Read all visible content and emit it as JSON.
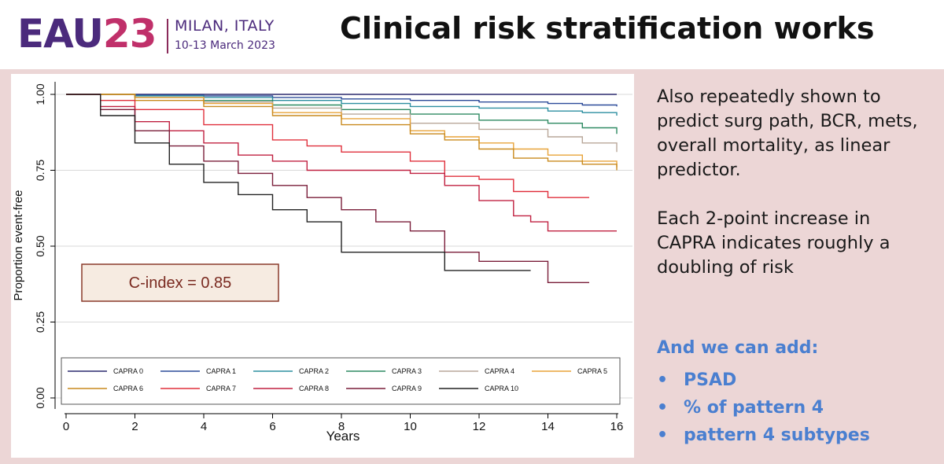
{
  "header": {
    "logo": {
      "eau": "EAU",
      "year": "23",
      "city": "MILAN, ITALY",
      "dates": "10-13 March 2023"
    },
    "title": "Clinical risk stratification works"
  },
  "side_text": {
    "paragraph1": "Also repeatedly shown to predict surg path, BCR, mets, overall mortality, as linear predictor.",
    "paragraph2": "Each 2-point increase in CAPRA indicates roughly a doubling of risk"
  },
  "additions": {
    "title": "And we can add:",
    "items": [
      "PSAD",
      "% of pattern 4",
      "pattern 4 subtypes"
    ]
  },
  "colors": {
    "header_bg": "#ffffff",
    "content_bg": "#ecd6d6",
    "accent_blue": "#4a7fd0",
    "logo_purple": "#4b2a7c",
    "logo_magenta": "#c0306a"
  },
  "chart_data": {
    "type": "line",
    "subtype": "kaplan-meier step curves",
    "xlabel": "Years",
    "ylabel": "Proportion event-free",
    "xlim": [
      0,
      16
    ],
    "ylim": [
      0,
      1
    ],
    "xticks": [
      0,
      2,
      4,
      6,
      8,
      10,
      12,
      14,
      16
    ],
    "yticks": [
      "0.00",
      "0.25",
      "0.50",
      "0.75",
      "1.00"
    ],
    "yticks_values": [
      0,
      0.25,
      0.5,
      0.75,
      1
    ],
    "grid": true,
    "legend_position": "bottom",
    "annotation": "C-index = 0.85",
    "series": [
      {
        "name": "CAPRA 0",
        "color": "#2b2a6e",
        "x": [
          0,
          2,
          6,
          10,
          14,
          16
        ],
        "y": [
          1.0,
          1.0,
          1.0,
          1.0,
          1.0,
          1.0
        ]
      },
      {
        "name": "CAPRA 1",
        "color": "#2c4b99",
        "x": [
          0,
          2,
          4,
          6,
          8,
          10,
          12,
          14,
          15,
          16
        ],
        "y": [
          1.0,
          0.998,
          0.995,
          0.99,
          0.985,
          0.98,
          0.975,
          0.97,
          0.965,
          0.96
        ]
      },
      {
        "name": "CAPRA 2",
        "color": "#2d8fa0",
        "x": [
          0,
          2,
          4,
          6,
          8,
          10,
          12,
          14,
          15,
          16
        ],
        "y": [
          1.0,
          0.995,
          0.99,
          0.98,
          0.97,
          0.96,
          0.955,
          0.945,
          0.94,
          0.93
        ]
      },
      {
        "name": "CAPRA 3",
        "color": "#2e8a62",
        "x": [
          0,
          2,
          4,
          6,
          8,
          10,
          12,
          14,
          15,
          16
        ],
        "y": [
          1.0,
          0.99,
          0.98,
          0.965,
          0.95,
          0.935,
          0.915,
          0.905,
          0.89,
          0.87
        ]
      },
      {
        "name": "CAPRA 4",
        "color": "#b9a79a",
        "x": [
          0,
          2,
          4,
          6,
          8,
          10,
          12,
          14,
          15,
          16
        ],
        "y": [
          1.0,
          0.99,
          0.975,
          0.955,
          0.935,
          0.905,
          0.885,
          0.86,
          0.84,
          0.81
        ]
      },
      {
        "name": "CAPRA 5",
        "color": "#e8a43a",
        "x": [
          0,
          2,
          4,
          6,
          8,
          10,
          11,
          12,
          13,
          14,
          15,
          16
        ],
        "y": [
          1.0,
          0.99,
          0.97,
          0.94,
          0.92,
          0.88,
          0.86,
          0.84,
          0.82,
          0.8,
          0.78,
          0.76
        ]
      },
      {
        "name": "CAPRA 6",
        "color": "#c98a1e",
        "x": [
          0,
          2,
          4,
          6,
          8,
          10,
          11,
          12,
          13,
          14,
          15,
          16
        ],
        "y": [
          1.0,
          0.98,
          0.96,
          0.93,
          0.9,
          0.87,
          0.85,
          0.82,
          0.79,
          0.78,
          0.77,
          0.75
        ]
      },
      {
        "name": "CAPRA 7",
        "color": "#e0303c",
        "x": [
          0,
          1,
          2,
          4,
          6,
          7,
          8,
          10,
          11,
          12,
          13,
          14,
          15.2
        ],
        "y": [
          1.0,
          0.98,
          0.95,
          0.9,
          0.85,
          0.83,
          0.81,
          0.78,
          0.73,
          0.72,
          0.68,
          0.66,
          0.66
        ]
      },
      {
        "name": "CAPRA 8",
        "color": "#c02040",
        "x": [
          0,
          1,
          2,
          3,
          4,
          5,
          6,
          7,
          8,
          10,
          11,
          12,
          13,
          13.5,
          14,
          16
        ],
        "y": [
          1.0,
          0.96,
          0.91,
          0.88,
          0.84,
          0.8,
          0.78,
          0.75,
          0.75,
          0.74,
          0.7,
          0.65,
          0.6,
          0.58,
          0.55,
          0.55
        ]
      },
      {
        "name": "CAPRA 9",
        "color": "#7a1e3a",
        "x": [
          0,
          1,
          2,
          3,
          4,
          5,
          6,
          7,
          8,
          9,
          10,
          11,
          12,
          13,
          14,
          15.2
        ],
        "y": [
          1.0,
          0.95,
          0.88,
          0.83,
          0.78,
          0.74,
          0.7,
          0.66,
          0.62,
          0.58,
          0.55,
          0.48,
          0.45,
          0.45,
          0.38,
          0.38
        ]
      },
      {
        "name": "CAPRA 10",
        "color": "#222222",
        "x": [
          0,
          1,
          2,
          3,
          4,
          5,
          6,
          7,
          8,
          9,
          10,
          11,
          12,
          13.5
        ],
        "y": [
          1.0,
          0.93,
          0.84,
          0.77,
          0.71,
          0.67,
          0.62,
          0.58,
          0.48,
          0.48,
          0.48,
          0.42,
          0.42,
          0.42
        ]
      }
    ]
  }
}
